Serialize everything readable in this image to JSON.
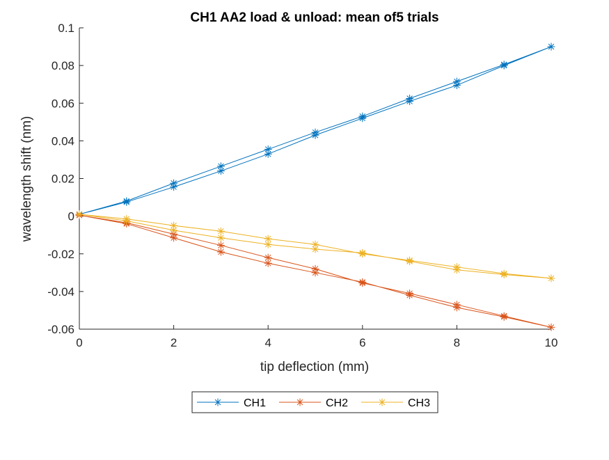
{
  "chart_data": {
    "type": "line",
    "title": "CH1 AA2 load & unload: mean of5 trials",
    "xlabel": "tip deflection (mm)",
    "ylabel": "wavelength shift (nm)",
    "xlim": [
      0,
      10
    ],
    "ylim": [
      -0.06,
      0.1
    ],
    "xticks": [
      "0",
      "2",
      "4",
      "6",
      "8",
      "10"
    ],
    "yticks": [
      "-0.06",
      "-0.04",
      "-0.02",
      "0",
      "0.02",
      "0.04",
      "0.06",
      "0.08",
      "0.1"
    ],
    "grid": false,
    "legend_position": "bottom-center",
    "marker": "asterisk",
    "series": [
      {
        "name": "CH1",
        "color": "#0072BD",
        "x": [
          0,
          1,
          2,
          3,
          4,
          5,
          6,
          7,
          8,
          9,
          10,
          9,
          8,
          7,
          6,
          5,
          4,
          3,
          2,
          1,
          0
        ],
        "y": [
          0.001,
          0.0075,
          0.0155,
          0.024,
          0.033,
          0.043,
          0.052,
          0.061,
          0.0695,
          0.08,
          0.09,
          0.0805,
          0.0715,
          0.0625,
          0.053,
          0.0445,
          0.0355,
          0.0265,
          0.0175,
          0.008,
          0.001
        ]
      },
      {
        "name": "CH2",
        "color": "#D95319",
        "x": [
          0,
          1,
          2,
          3,
          4,
          5,
          6,
          7,
          8,
          9,
          10,
          9,
          8,
          7,
          6,
          5,
          4,
          3,
          2,
          1,
          0
        ],
        "y": [
          0.0005,
          -0.004,
          -0.0115,
          -0.019,
          -0.025,
          -0.03,
          -0.035,
          -0.042,
          -0.0485,
          -0.0535,
          -0.059,
          -0.053,
          -0.047,
          -0.041,
          -0.0355,
          -0.028,
          -0.022,
          -0.0155,
          -0.0095,
          -0.0035,
          0.0005
        ]
      },
      {
        "name": "CH3",
        "color": "#EDB120",
        "x": [
          0,
          1,
          2,
          3,
          4,
          5,
          6,
          7,
          8,
          9,
          10,
          9,
          8,
          7,
          6,
          5,
          4,
          3,
          2,
          1,
          0
        ],
        "y": [
          0.001,
          -0.0025,
          -0.0075,
          -0.0115,
          -0.015,
          -0.0175,
          -0.0195,
          -0.024,
          -0.0285,
          -0.031,
          -0.033,
          -0.0305,
          -0.027,
          -0.0235,
          -0.02,
          -0.015,
          -0.012,
          -0.008,
          -0.005,
          -0.0015,
          0.001
        ]
      }
    ]
  }
}
